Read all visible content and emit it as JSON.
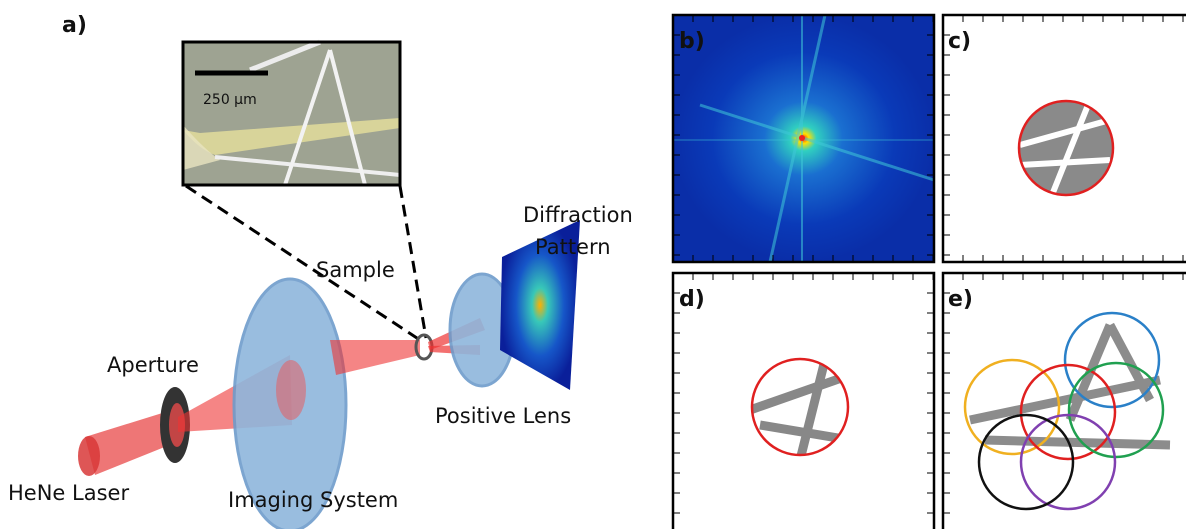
{
  "panel_a": {
    "label": "a)",
    "scale_bar": "250 µm",
    "sample": "Sample",
    "diffraction": [
      "Diffraction",
      "Pattern"
    ],
    "aperture": "Aperture",
    "positive_lens": "Positive Lens",
    "laser": "HeNe Laser",
    "imaging_system": "Imaging System"
  },
  "panels": [
    {
      "label": "b)"
    },
    {
      "label": "c)"
    },
    {
      "label": "d)"
    },
    {
      "label": "e)"
    }
  ]
}
